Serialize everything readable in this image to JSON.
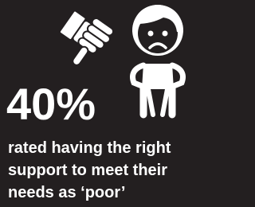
{
  "stat": "40%",
  "caption": {
    "lines": [
      "rated having the right",
      "support to meet their",
      "needs as ‘poor’"
    ]
  }
}
